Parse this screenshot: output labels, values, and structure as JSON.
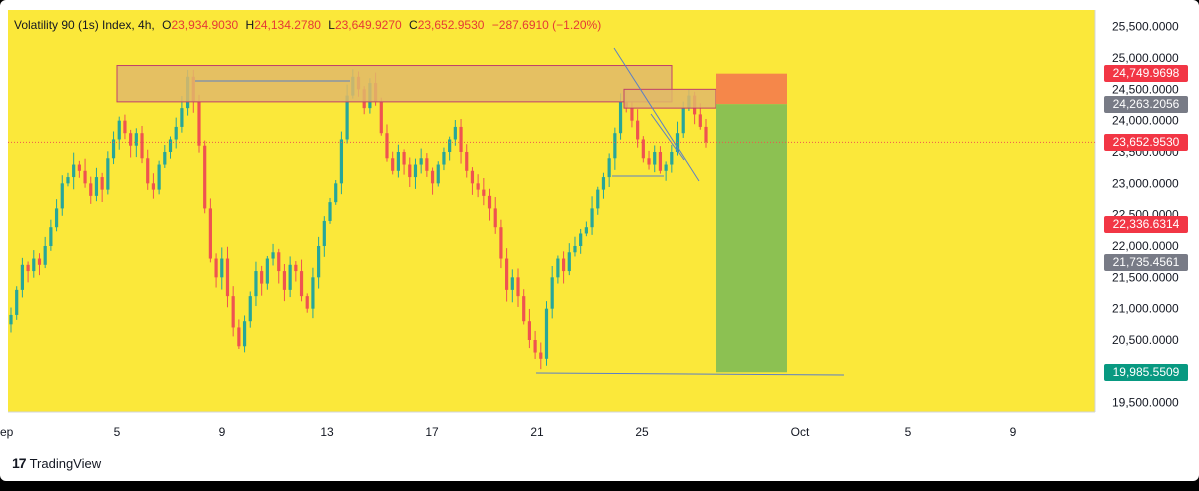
{
  "legend": {
    "symbol": "Volatility 90 (1s) Index, 4h,",
    "open_label": "O",
    "open": "23,934.9030",
    "high_label": "H",
    "high": "24,134.2780",
    "low_label": "L",
    "low": "23,649.9270",
    "close_label": "C",
    "close": "23,652.9530",
    "change": "−287.6910 (−1.20%)"
  },
  "brand": {
    "logo": "17",
    "name": "TradingView"
  },
  "colors": {
    "background": "#fbe83a",
    "up_candle": "#26a69a",
    "down_candle": "#ef5350",
    "zone_fill": "#e0b96a",
    "zone_border": "#c0406a",
    "target_zone": "#8cc152",
    "stop_zone": "#f5874a",
    "trendline": "#5b7fc6",
    "current_price_line": "#ef5350"
  },
  "price_tags": [
    {
      "text": "24,749.9698",
      "color": "#f23645"
    },
    {
      "text": "24,263.2056",
      "color": "#787b86"
    },
    {
      "text": "23,652.9530",
      "color": "#f23645"
    },
    {
      "text": "22,336.6314",
      "color": "#f23645"
    },
    {
      "text": "21,735.4561",
      "color": "#787b86"
    },
    {
      "text": "19,985.5509",
      "color": "#089981"
    }
  ],
  "chart_data": {
    "type": "candlestick",
    "timeframe": "4h",
    "x_ticks": [
      "ep",
      "5",
      "9",
      "13",
      "17",
      "21",
      "25",
      "Oct",
      "5",
      "9"
    ],
    "y_ticks": [
      "25,500.0000",
      "25,000.0000",
      "24,500.0000",
      "24,000.0000",
      "23,500.0000",
      "23,000.0000",
      "22,500.0000",
      "22,000.0000",
      "21,500.0000",
      "21,000.0000",
      "20,500.0000",
      "19,500.0000"
    ],
    "y_tick_values": [
      25500,
      25000,
      24500,
      24000,
      23500,
      23000,
      22500,
      22000,
      21500,
      21000,
      20500,
      19500
    ],
    "ylim": [
      19100,
      25800
    ],
    "grid": false,
    "close_series": [
      20900,
      21300,
      21700,
      21600,
      21800,
      21700,
      22000,
      22300,
      22600,
      23000,
      23100,
      23300,
      23200,
      23000,
      22800,
      23100,
      22900,
      23400,
      23700,
      24000,
      23800,
      23600,
      23800,
      23400,
      23000,
      22900,
      23300,
      23500,
      23700,
      23900,
      24200,
      24700,
      24300,
      23600,
      22600,
      21800,
      21500,
      21800,
      21200,
      20700,
      20400,
      20800,
      21200,
      21600,
      21400,
      21800,
      21900,
      21600,
      21300,
      21700,
      21600,
      21200,
      21000,
      21500,
      22000,
      22400,
      22700,
      23000,
      23700,
      24400,
      24700,
      24500,
      24200,
      24600,
      24300,
      23800,
      23400,
      23200,
      23500,
      23300,
      23100,
      23300,
      23400,
      23200,
      23000,
      23300,
      23500,
      23700,
      23900,
      23500,
      23200,
      23000,
      22900,
      22800,
      22600,
      22300,
      21800,
      21300,
      21500,
      21200,
      20800,
      20500,
      20300,
      20200,
      21000,
      21500,
      21800,
      21600,
      21900,
      22000,
      22200,
      22300,
      22600,
      22900,
      23100,
      23400,
      23800,
      24300,
      24200,
      24000,
      23700,
      23400,
      23300,
      23500,
      23200,
      23300,
      23500,
      23800,
      24200,
      24400,
      24100,
      23900,
      23653
    ],
    "supply_zone": [
      24300,
      24880
    ],
    "position": {
      "entry": 24263.2056,
      "stop": 24749.9698,
      "target": 19985.5509
    },
    "current_price": 23652.953
  }
}
